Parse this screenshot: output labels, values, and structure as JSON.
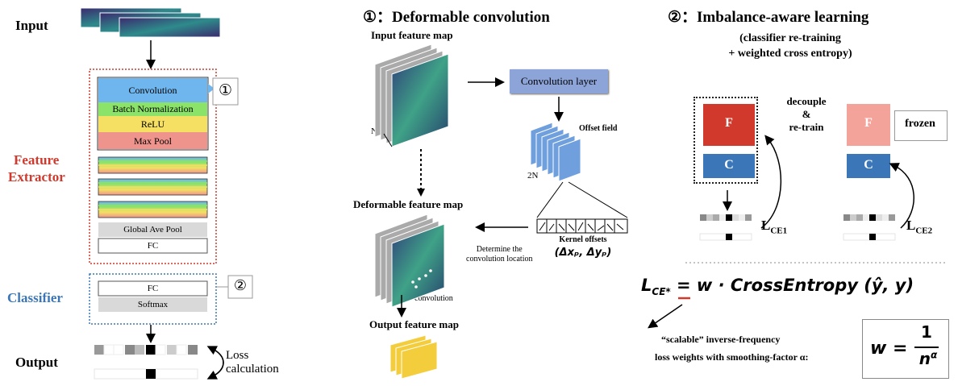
{
  "left": {
    "input_label": "Input",
    "output_label": "Output",
    "feature_extractor_line1": "Feature",
    "feature_extractor_line2": "Extractor",
    "classifier_label": "Classifier",
    "layers": {
      "convolution": "Convolution",
      "batch_norm": "Batch Normalization",
      "relu": "ReLU",
      "max_pool": "Max Pool",
      "global_ave_pool": "Global Ave Pool",
      "fc": "FC",
      "classifier_fc": "FC",
      "softmax": "Softmax"
    },
    "marker_1": "①",
    "marker_2": "②",
    "loss_line1": "Loss",
    "loss_line2": "calculation"
  },
  "middle": {
    "title": "①：Deformable convolution",
    "input_feature_map": "Input feature map",
    "n_label": "N",
    "conv_layer": "Convolution layer",
    "offset_field": "Offset field",
    "two_n": "2N",
    "deformable_feature_map": "Deformable feature map",
    "kernel_offsets": "Kernel offsets",
    "kernel_offsets_formula": "(Δxₚ, Δyₚ)",
    "determine_line1": "Determine the",
    "determine_line2": "convolution location",
    "convolution": "convolution",
    "output_feature_map": "Output feature map"
  },
  "right": {
    "title": "②：Imbalance-aware learning",
    "subtitle_line1": "(classifier re-training",
    "subtitle_line2": "+ weighted cross entropy)",
    "f_label": "F",
    "c_label": "C",
    "f2_label": "F",
    "c2_label": "C",
    "frozen": "frozen",
    "decouple_line1": "decouple",
    "decouple_line2": "&",
    "decouple_line3": "re-train",
    "lce1_main": "L",
    "lce1_sub": "CE1",
    "lce2_main": "L",
    "lce2_sub": "CE2",
    "ce_formula_lhs_main": "L",
    "ce_formula_lhs_sub": "CE*",
    "ce_formula_rhs": "= w · CrossEntropy (ŷ, y)",
    "scalable_line1": "“scalable” inverse-frequency",
    "scalable_line2": "loss weights with smoothing-factor α:",
    "w_formula_w": "w =",
    "w_formula_num": "1",
    "w_formula_den": "n",
    "w_formula_exp": "α"
  },
  "colors": {
    "convolution": "#6fb6ee",
    "batch_norm": "#8be36a",
    "relu": "#f5e063",
    "max_pool": "#ee948c",
    "gray_layer": "#d9d9d9",
    "feature_red": "#d0392b",
    "classifier_blue": "#3b77b8",
    "conv_layer_box": "#8ca4d8",
    "frozen_f": "#f4a39a",
    "offset_blue": "#6f9fdc",
    "output_yellow": "#f3cd3c"
  }
}
